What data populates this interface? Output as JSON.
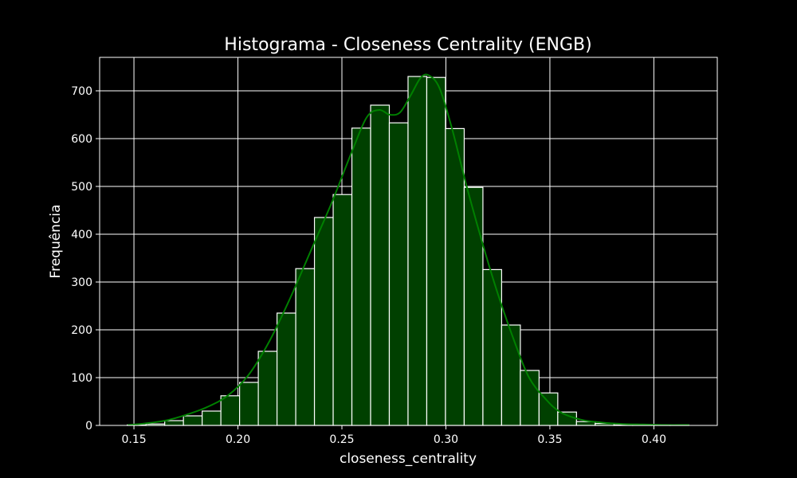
{
  "chart_data": {
    "type": "bar",
    "title": "Histograma - Closeness Centrality (ENGB)",
    "xlabel": "closeness_centrality",
    "ylabel": "Frequência",
    "xlim": [
      0.1335,
      0.4305
    ],
    "ylim": [
      0,
      770
    ],
    "xticks": [
      0.15,
      0.2,
      0.25,
      0.3,
      0.35,
      0.4
    ],
    "xtick_labels": [
      "0.15",
      "0.20",
      "0.25",
      "0.30",
      "0.35",
      "0.40"
    ],
    "yticks": [
      0,
      100,
      200,
      300,
      400,
      500,
      600,
      700
    ],
    "ytick_labels": [
      "0",
      "100",
      "200",
      "300",
      "400",
      "500",
      "600",
      "700"
    ],
    "grid": true,
    "bar_color": "#004000",
    "edge_color": "#ffffff",
    "kde_color": "#008000",
    "bins": [
      {
        "x0": 0.1468,
        "x1": 0.1558,
        "count": 1
      },
      {
        "x0": 0.1558,
        "x1": 0.1648,
        "count": 3
      },
      {
        "x0": 0.1648,
        "x1": 0.1738,
        "count": 10
      },
      {
        "x0": 0.1738,
        "x1": 0.1828,
        "count": 20
      },
      {
        "x0": 0.1828,
        "x1": 0.1918,
        "count": 30
      },
      {
        "x0": 0.1918,
        "x1": 0.2008,
        "count": 62
      },
      {
        "x0": 0.2008,
        "x1": 0.2098,
        "count": 90
      },
      {
        "x0": 0.2098,
        "x1": 0.2188,
        "count": 155
      },
      {
        "x0": 0.2188,
        "x1": 0.2278,
        "count": 235
      },
      {
        "x0": 0.2278,
        "x1": 0.2368,
        "count": 328
      },
      {
        "x0": 0.2368,
        "x1": 0.2458,
        "count": 435
      },
      {
        "x0": 0.2458,
        "x1": 0.2548,
        "count": 483
      },
      {
        "x0": 0.2548,
        "x1": 0.2638,
        "count": 622
      },
      {
        "x0": 0.2638,
        "x1": 0.2728,
        "count": 670
      },
      {
        "x0": 0.2728,
        "x1": 0.2818,
        "count": 633
      },
      {
        "x0": 0.2818,
        "x1": 0.2908,
        "count": 730
      },
      {
        "x0": 0.2908,
        "x1": 0.2998,
        "count": 728
      },
      {
        "x0": 0.2998,
        "x1": 0.3088,
        "count": 621
      },
      {
        "x0": 0.3088,
        "x1": 0.3178,
        "count": 498
      },
      {
        "x0": 0.3178,
        "x1": 0.3268,
        "count": 326
      },
      {
        "x0": 0.3268,
        "x1": 0.3358,
        "count": 210
      },
      {
        "x0": 0.3358,
        "x1": 0.3448,
        "count": 115
      },
      {
        "x0": 0.3448,
        "x1": 0.3538,
        "count": 68
      },
      {
        "x0": 0.3538,
        "x1": 0.3628,
        "count": 28
      },
      {
        "x0": 0.3628,
        "x1": 0.3718,
        "count": 8
      },
      {
        "x0": 0.3718,
        "x1": 0.3808,
        "count": 4
      },
      {
        "x0": 0.3808,
        "x1": 0.3898,
        "count": 1
      },
      {
        "x0": 0.3898,
        "x1": 0.3988,
        "count": 1
      },
      {
        "x0": 0.3988,
        "x1": 0.4078,
        "count": 1
      },
      {
        "x0": 0.4078,
        "x1": 0.4168,
        "count": 1
      }
    ],
    "kde": {
      "x": [
        0.147,
        0.155,
        0.165,
        0.175,
        0.185,
        0.195,
        0.205,
        0.215,
        0.225,
        0.235,
        0.245,
        0.255,
        0.262,
        0.268,
        0.273,
        0.278,
        0.283,
        0.288,
        0.292,
        0.297,
        0.303,
        0.31,
        0.318,
        0.325,
        0.333,
        0.34,
        0.348,
        0.355,
        0.365,
        0.375,
        0.385,
        0.395,
        0.405,
        0.417
      ],
      "y": [
        1,
        4,
        10,
        22,
        38,
        62,
        105,
        175,
        265,
        365,
        465,
        575,
        645,
        660,
        650,
        655,
        690,
        728,
        732,
        705,
        620,
        500,
        375,
        275,
        175,
        100,
        55,
        28,
        12,
        6,
        3,
        2,
        1,
        1
      ]
    }
  }
}
